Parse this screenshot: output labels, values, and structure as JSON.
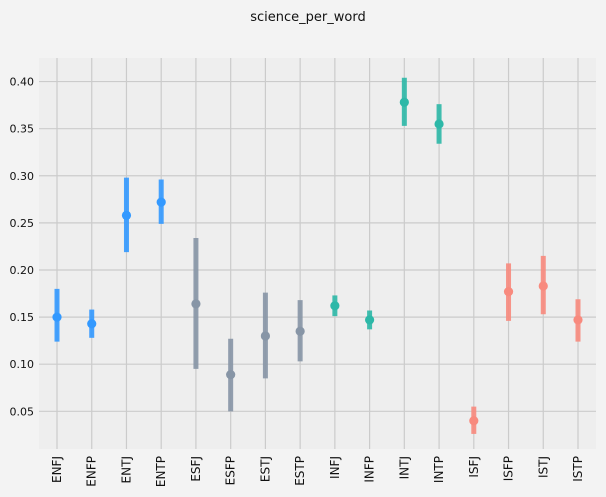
{
  "chart_data": {
    "type": "scatter",
    "title": "science_per_word",
    "xlabel": "",
    "ylabel": "",
    "ylim": [
      0.01,
      0.425
    ],
    "yticks": [
      0.05,
      0.1,
      0.15,
      0.2,
      0.25,
      0.3,
      0.35,
      0.4
    ],
    "ytick_labels": [
      "0.05",
      "0.10",
      "0.15",
      "0.20",
      "0.25",
      "0.30",
      "0.35",
      "0.40"
    ],
    "grid": true,
    "categories": [
      "ENFJ",
      "ENFP",
      "ENTJ",
      "ENTP",
      "ESFJ",
      "ESFP",
      "ESTJ",
      "ESTP",
      "INFJ",
      "INFP",
      "INTJ",
      "INTP",
      "ISFJ",
      "ISFP",
      "ISTJ",
      "ISTP"
    ],
    "values": [
      0.15,
      0.143,
      0.258,
      0.272,
      0.164,
      0.089,
      0.13,
      0.135,
      0.162,
      0.147,
      0.378,
      0.355,
      0.04,
      0.177,
      0.183,
      0.147
    ],
    "ci_low": [
      0.124,
      0.128,
      0.219,
      0.249,
      0.095,
      0.05,
      0.085,
      0.103,
      0.151,
      0.137,
      0.353,
      0.334,
      0.026,
      0.146,
      0.153,
      0.124
    ],
    "ci_high": [
      0.18,
      0.158,
      0.298,
      0.296,
      0.234,
      0.127,
      0.176,
      0.168,
      0.173,
      0.157,
      0.404,
      0.376,
      0.055,
      0.207,
      0.215,
      0.169
    ],
    "colors": [
      "#3399ff",
      "#3399ff",
      "#3399ff",
      "#3399ff",
      "#8795a6",
      "#8795a6",
      "#8795a6",
      "#8795a6",
      "#2db8a8",
      "#2db8a8",
      "#2db8a8",
      "#2db8a8",
      "#f88a7e",
      "#f88a7e",
      "#f88a7e",
      "#f88a7e"
    ]
  }
}
